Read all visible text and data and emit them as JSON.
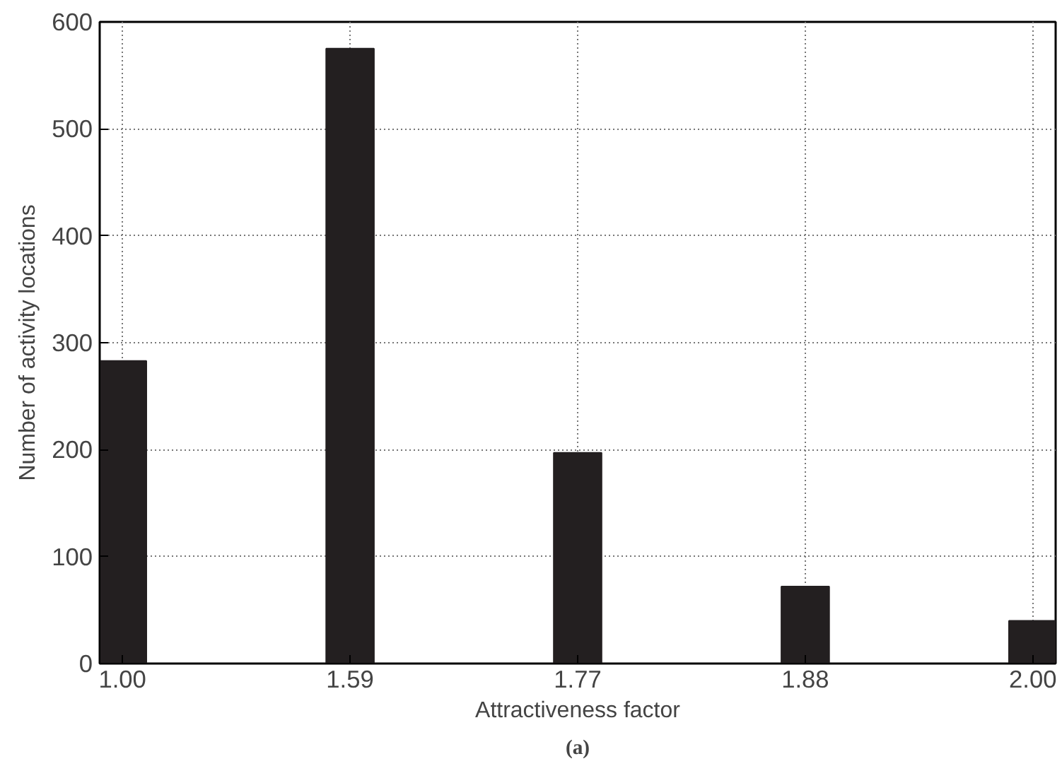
{
  "chart_data": {
    "type": "bar",
    "xlabel": "Attractiveness factor",
    "ylabel": "Number of activity locations",
    "categories": [
      "1.00",
      "1.59",
      "1.77",
      "1.88",
      "2.00"
    ],
    "values": [
      283,
      575,
      197,
      72,
      40
    ],
    "color": "#231f20",
    "ylim": [
      0,
      600
    ],
    "yticks": [
      0,
      100,
      200,
      300,
      400,
      500,
      600
    ],
    "grid": true,
    "annotations": [
      "(a)"
    ]
  }
}
